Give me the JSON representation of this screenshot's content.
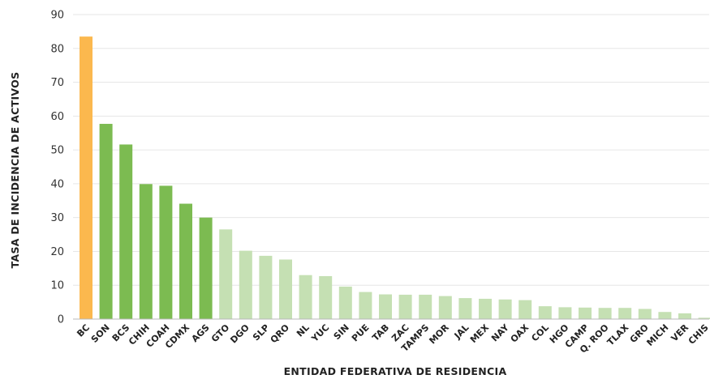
{
  "chart_data": {
    "type": "bar",
    "xlabel": "ENTIDAD FEDERATIVA DE RESIDENCIA",
    "ylabel": "TASA DE INCIDENCIA DE ACTIVOS",
    "ylim": [
      0,
      90
    ],
    "yticks": [
      0,
      10,
      20,
      30,
      40,
      50,
      60,
      70,
      80,
      90
    ],
    "grid": true,
    "legend": "none",
    "categories": [
      "BC",
      "SON",
      "BCS",
      "CHIH",
      "COAH",
      "CDMX",
      "AGS",
      "GTO",
      "DGO",
      "SLP",
      "QRO",
      "NL",
      "YUC",
      "SIN",
      "PUE",
      "TAB",
      "ZAC",
      "TAMPS",
      "MOR",
      "JAL",
      "MEX",
      "NAY",
      "OAX",
      "COL",
      "HGO",
      "CAMP",
      "Q. ROO",
      "TLAX",
      "GRO",
      "MICH",
      "VER",
      "CHIS"
    ],
    "values": [
      83.5,
      57.7,
      51.6,
      39.9,
      39.4,
      34.1,
      30.0,
      26.5,
      20.2,
      18.7,
      17.6,
      13.0,
      12.7,
      9.6,
      8.0,
      7.3,
      7.2,
      7.2,
      6.8,
      6.2,
      6.0,
      5.8,
      5.6,
      3.8,
      3.5,
      3.4,
      3.3,
      3.3,
      3.0,
      2.1,
      1.7,
      0.4
    ],
    "bar_colors": [
      "#fbb84e",
      "#7cbb51",
      "#7cbb51",
      "#7cbb51",
      "#7cbb51",
      "#7cbb51",
      "#7cbb51",
      "#c5e0b3",
      "#c5e0b3",
      "#c5e0b3",
      "#c5e0b3",
      "#c5e0b3",
      "#c5e0b3",
      "#c5e0b3",
      "#c5e0b3",
      "#c5e0b3",
      "#c5e0b3",
      "#c5e0b3",
      "#c5e0b3",
      "#c5e0b3",
      "#c5e0b3",
      "#c5e0b3",
      "#c5e0b3",
      "#c5e0b3",
      "#c5e0b3",
      "#c5e0b3",
      "#c5e0b3",
      "#c5e0b3",
      "#c5e0b3",
      "#c5e0b3",
      "#c5e0b3",
      "#c5e0b3"
    ]
  }
}
